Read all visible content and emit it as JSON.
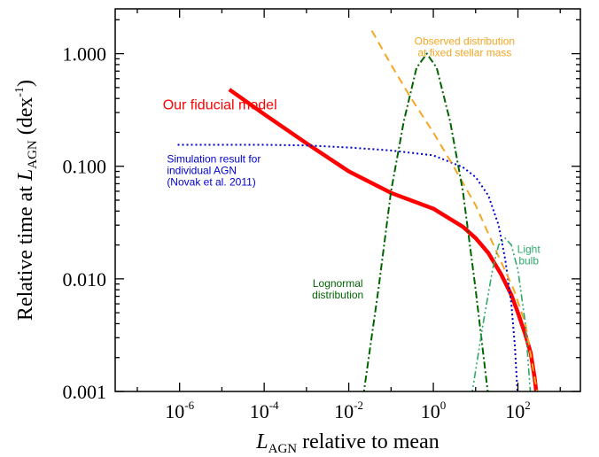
{
  "chart_data": {
    "type": "line",
    "x_scale": "log",
    "y_scale": "log",
    "xlim": [
      3e-08,
      3000
    ],
    "ylim": [
      0.001,
      2.5
    ],
    "grid": false,
    "xlabel": {
      "var": "L",
      "sub": "AGN",
      "rest": " relative to mean"
    },
    "ylabel": {
      "pre": "Relative time at ",
      "var": "L",
      "sub": "AGN",
      "unit": " (dex",
      "unit_sup": "-1",
      "unit_close": ")"
    },
    "x_ticks": [
      {
        "value": 1e-06,
        "base": "10",
        "exp": "-6"
      },
      {
        "value": 0.0001,
        "base": "10",
        "exp": "-4"
      },
      {
        "value": 0.01,
        "base": "10",
        "exp": "-2"
      },
      {
        "value": 1,
        "base": "10",
        "exp": "0"
      },
      {
        "value": 100,
        "base": "10",
        "exp": "2"
      }
    ],
    "y_ticks": [
      {
        "value": 1,
        "label": "1.000"
      },
      {
        "value": 0.1,
        "label": "0.100"
      },
      {
        "value": 0.01,
        "label": "0.010"
      },
      {
        "value": 0.001,
        "label": "0.001"
      }
    ],
    "series": [
      {
        "name": "Our fiducial model",
        "color": "#ff0000",
        "dash": "solid",
        "width": 4.5,
        "annotation": {
          "lines": [
            "Our fiducial model"
          ],
          "size": 16,
          "anchor": "start",
          "x": 4e-07,
          "y": 0.32
        },
        "points": [
          [
            1.5e-05,
            0.48
          ],
          [
            0.0001,
            0.29
          ],
          [
            0.001,
            0.16
          ],
          [
            0.01,
            0.09
          ],
          [
            0.1,
            0.058
          ],
          [
            1,
            0.042
          ],
          [
            5,
            0.029
          ],
          [
            10,
            0.023
          ],
          [
            20,
            0.017
          ],
          [
            40,
            0.011
          ],
          [
            70,
            0.0072
          ],
          [
            100,
            0.005
          ],
          [
            150,
            0.0032
          ],
          [
            200,
            0.0022
          ],
          [
            250,
            0.0013
          ],
          [
            280,
            0.0009
          ]
        ]
      },
      {
        "name": "Simulation result for individual AGN (Novak et al. 2011)",
        "color": "#0000cc",
        "dash": "2 3",
        "width": 2,
        "annotation": {
          "lines": [
            "Simulation result for",
            "individual AGN",
            "(Novak et al. 2011)"
          ],
          "size": 12,
          "anchor": "start",
          "x": 5e-07,
          "y": 0.108
        },
        "points": [
          [
            9e-07,
            0.155
          ],
          [
            1e-05,
            0.155
          ],
          [
            0.0001,
            0.155
          ],
          [
            0.001,
            0.153
          ],
          [
            0.01,
            0.147
          ],
          [
            0.1,
            0.138
          ],
          [
            1,
            0.125
          ],
          [
            5,
            0.098
          ],
          [
            10,
            0.08
          ],
          [
            20,
            0.055
          ],
          [
            35,
            0.03
          ],
          [
            50,
            0.015
          ],
          [
            70,
            0.006
          ],
          [
            85,
            0.0025
          ],
          [
            95,
            0.0012
          ],
          [
            100,
            0.0009
          ]
        ]
      },
      {
        "name": "Observed distribution at fixed stellar mass",
        "color": "#f5a623",
        "dash": "9 6",
        "width": 2,
        "annotation": {
          "lines": [
            "Observed distribution",
            "at fixed stellar mass"
          ],
          "size": 12,
          "anchor": "middle",
          "x": 5.5,
          "y": 1.2
        },
        "points": [
          [
            0.035,
            1.6
          ],
          [
            0.1,
            0.8
          ],
          [
            0.3,
            0.4
          ],
          [
            1,
            0.2
          ],
          [
            3,
            0.1
          ],
          [
            10,
            0.045
          ],
          [
            30,
            0.018
          ],
          [
            80,
            0.008
          ],
          [
            150,
            0.004
          ],
          [
            250,
            0.0013
          ],
          [
            300,
            0.0009
          ]
        ]
      },
      {
        "name": "Lognormal distribution",
        "color": "#006400",
        "dash": "8 3 2 3",
        "width": 2,
        "annotation": {
          "lines": [
            "Lognormal",
            "distribution"
          ],
          "size": 12,
          "anchor": "middle",
          "x": 0.0055,
          "y": 0.0085
        },
        "points": [
          [
            0.022,
            0.0009
          ],
          [
            0.05,
            0.008
          ],
          [
            0.1,
            0.06
          ],
          [
            0.2,
            0.25
          ],
          [
            0.4,
            0.75
          ],
          [
            0.7,
            1.0
          ],
          [
            1.2,
            0.75
          ],
          [
            2.5,
            0.25
          ],
          [
            5,
            0.06
          ],
          [
            10,
            0.008
          ],
          [
            20,
            0.0009
          ]
        ]
      },
      {
        "name": "Light bulb",
        "color": "#2eaa6a",
        "dash": "8 3 2 3 2 3",
        "width": 1.6,
        "annotation": {
          "lines": [
            "Light",
            "bulb"
          ],
          "size": 12,
          "anchor": "middle",
          "x": 180,
          "y": 0.017
        },
        "points": [
          [
            8,
            0.0009
          ],
          [
            15,
            0.004
          ],
          [
            25,
            0.012
          ],
          [
            35,
            0.02
          ],
          [
            50,
            0.023
          ],
          [
            70,
            0.02
          ],
          [
            100,
            0.012
          ],
          [
            150,
            0.004
          ],
          [
            200,
            0.0009
          ]
        ]
      }
    ]
  }
}
